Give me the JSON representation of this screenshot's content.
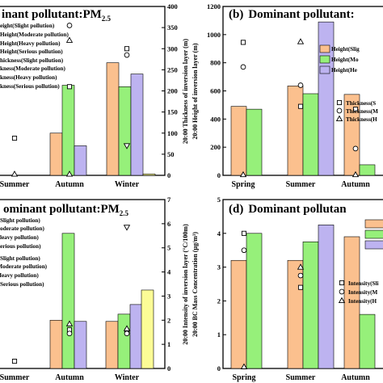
{
  "colors": {
    "orange": "#FBC08E",
    "green": "#96F07A",
    "purple": "#BDB3F0",
    "yellow": "#FCFC96"
  },
  "chart_data": [
    {
      "panel": "a",
      "type": "bar",
      "title_visible": "inant pollutant:PM",
      "title_sub": "2.5",
      "categories": [
        "Summer",
        "Autumn",
        "Winter"
      ],
      "series": [
        {
          "name": "Height(Slight pollution)",
          "values": [
            null,
            300,
            800
          ]
        },
        {
          "name": "Height(Moderate pollution)",
          "values": [
            null,
            640,
            630
          ]
        },
        {
          "name": "Height(Heavy pollution)",
          "values": [
            null,
            210,
            720
          ]
        },
        {
          "name": "Height(Serious pollution)",
          "values": [
            null,
            null,
            10
          ]
        }
      ],
      "markers": [
        {
          "shape": "square",
          "cat": 0,
          "value": 88
        },
        {
          "shape": "square",
          "cat": 1,
          "value": 210
        },
        {
          "shape": "circle",
          "cat": 1,
          "value": 355
        },
        {
          "shape": "triangle",
          "cat": 1,
          "value": 320
        },
        {
          "shape": "square",
          "cat": 2,
          "value": 300
        },
        {
          "shape": "circle",
          "cat": 2,
          "value": 285
        },
        {
          "shape": "triangle-down",
          "cat": 2,
          "value": 70
        },
        {
          "shape": "triangle",
          "cat": 1,
          "value": 3
        },
        {
          "shape": "triangle",
          "cat": 0,
          "value": 3
        }
      ],
      "legend": [
        "Height(Slight pollution)",
        "Height(Moderate pollution)",
        "Height(Heavy pollution)",
        "Height(Serious pollution)",
        "Thickness(Slight pollution)",
        "Thickness(Moderate pollution)",
        "Thickness(Heavy pollution)",
        "Thickness(Serious pollution)"
      ],
      "legend_visible": [
        "eight(Slight pollution)",
        "Height(Moderate pollution)",
        "Height(Heavy pollution)",
        "Height(Serious pollution)",
        "hickness(Slight pollution)",
        "kness(Moderate pollution)",
        "kness(Heavy pollution)",
        "kness(Serious pollution)"
      ],
      "y2label": "20:00 Thickness of inversion layer (m)",
      "y2ticks": [
        0,
        50,
        100,
        150,
        200,
        250,
        300,
        350,
        400
      ],
      "y2lim": [
        0,
        400
      ]
    },
    {
      "panel": "b",
      "type": "bar",
      "title_visible": "Dominant pollutant:",
      "panel_label": "(b)",
      "categories": [
        "Spring",
        "Summer",
        "Autumn"
      ],
      "series": [
        {
          "name": "Height(Slight pollution)",
          "values": [
            490,
            635,
            575
          ]
        },
        {
          "name": "Height(Moderate pollution)",
          "values": [
            470,
            580,
            75
          ]
        },
        {
          "name": "Height(Heavy pollution)",
          "values": [
            null,
            1090,
            null
          ]
        }
      ],
      "markers": [
        {
          "shape": "square",
          "cat": 0,
          "value": 945
        },
        {
          "shape": "circle",
          "cat": 0,
          "value": 770
        },
        {
          "shape": "triangle",
          "cat": 0,
          "value": 5
        },
        {
          "shape": "square",
          "cat": 1,
          "value": 490
        },
        {
          "shape": "circle",
          "cat": 1,
          "value": 640
        },
        {
          "shape": "triangle",
          "cat": 1,
          "value": 950
        },
        {
          "shape": "square",
          "cat": 2,
          "value": 470
        },
        {
          "shape": "circle",
          "cat": 2,
          "value": 190
        },
        {
          "shape": "triangle",
          "cat": 2,
          "value": 5
        }
      ],
      "legend_visible": [
        "Height(Slig",
        "Height(Mo",
        "Height(He",
        "Thickness(S",
        "Thickness(M",
        "Thickness(H"
      ],
      "ylabel": "20:00 Height of inversion layer (m)",
      "yticks": [
        0,
        200,
        400,
        600,
        800,
        1000,
        1200
      ],
      "ylim": [
        0,
        1200
      ]
    },
    {
      "panel": "c",
      "type": "bar",
      "title_visible": "ominant pollutant:PM",
      "title_sub": "2.5",
      "categories": [
        "Summer",
        "Autumn",
        "Winter"
      ],
      "series": [
        {
          "name": "Slight pollution",
          "values": [
            null,
            2.0,
            1.95
          ]
        },
        {
          "name": "Moderate pollution",
          "values": [
            null,
            5.6,
            2.25
          ]
        },
        {
          "name": "Heavy pollution",
          "values": [
            null,
            1.95,
            2.65
          ]
        },
        {
          "name": "Serious pollution",
          "values": [
            null,
            null,
            3.25
          ]
        }
      ],
      "markers": [
        {
          "shape": "square",
          "cat": 0,
          "value": 0.3
        },
        {
          "shape": "square",
          "cat": 1,
          "value": 1.6
        },
        {
          "shape": "circle",
          "cat": 1,
          "value": 1.45
        },
        {
          "shape": "triangle",
          "cat": 1,
          "value": 1.85
        },
        {
          "shape": "square",
          "cat": 2,
          "value": 1.55
        },
        {
          "shape": "circle",
          "cat": 2,
          "value": 1.45
        },
        {
          "shape": "triangle-down",
          "cat": 2,
          "value": 5.85
        },
        {
          "shape": "triangle",
          "cat": 2,
          "value": 1.65
        }
      ],
      "legend_visible": [
        "Slight pollution)",
        "oderate pollution)",
        "leavy pollution)",
        "erious pollution)",
        "Slight pollution)",
        "(Moderate pollution)",
        "(Heavy pollution)",
        "Serious pollution)"
      ],
      "y2label": "20:00 Intensity of inversion layer (°C/100m)",
      "y2ticks": [
        0,
        1,
        2,
        3,
        4,
        5,
        6,
        7
      ],
      "y2lim": [
        0,
        7
      ]
    },
    {
      "panel": "d",
      "type": "bar",
      "title_visible": "Dominant pollutan",
      "panel_label": "(d)",
      "categories": [
        "Spring",
        "Summer",
        "Autumn"
      ],
      "series": [
        {
          "name": "Slight pollution",
          "values": [
            3.2,
            3.2,
            3.9
          ]
        },
        {
          "name": "Moderate pollution",
          "values": [
            4.0,
            3.75,
            1.6
          ]
        },
        {
          "name": "Heavy pollution",
          "values": [
            null,
            4.25,
            null
          ]
        }
      ],
      "markers": [
        {
          "shape": "square",
          "cat": 0,
          "value": 4.0
        },
        {
          "shape": "circle",
          "cat": 0,
          "value": 3.5
        },
        {
          "shape": "triangle",
          "cat": 0,
          "value": 0.05
        },
        {
          "shape": "square",
          "cat": 1,
          "value": 2.4
        },
        {
          "shape": "circle",
          "cat": 1,
          "value": 2.75
        },
        {
          "shape": "triangle",
          "cat": 1,
          "value": 3.0
        }
      ],
      "legend_visible": [
        "Intensity(Sli",
        "Intensity(M",
        "Intensity(H"
      ],
      "ylabel": "20:00 BC Mass Concentration (μg/m³)",
      "yticks": [
        0,
        1,
        2,
        3,
        4,
        5
      ],
      "ylim": [
        0,
        5
      ]
    }
  ]
}
